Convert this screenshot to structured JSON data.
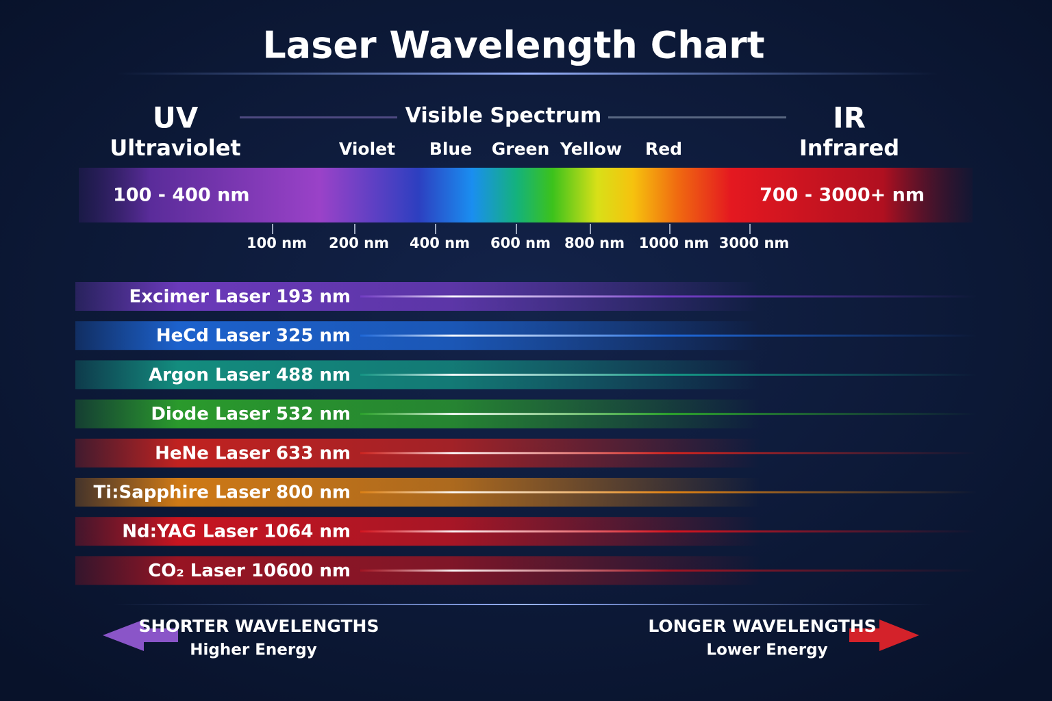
{
  "title": "Laser Wavelength Chart",
  "spectrum": {
    "uv": {
      "short": "UV",
      "name": "Ultraviolet",
      "range": "100 - 400 nm",
      "color": "#b65ad8"
    },
    "visible": {
      "label": "Visible Spectrum",
      "colors": [
        {
          "name": "Violet",
          "color": "#b04fd6"
        },
        {
          "name": "Blue",
          "color": "#3f8cf0"
        },
        {
          "name": "Green",
          "color": "#49d33c"
        },
        {
          "name": "Yellow",
          "color": "#f2d21c"
        },
        {
          "name": "Red",
          "color": "#ee3a22"
        }
      ]
    },
    "ir": {
      "short": "IR",
      "name": "Infrared",
      "range": "700 - 3000+ nm",
      "color": "#e8202e"
    },
    "ticks": [
      "100 nm",
      "200 nm",
      "400 nm",
      "600 nm",
      "800 nm",
      "1000 nm",
      "3000 nm"
    ]
  },
  "lasers": [
    {
      "label": "Excimer Laser 193 nm",
      "color": "#7b3fd0"
    },
    {
      "label": "HeCd Laser 325 nm",
      "color": "#1f6ee6"
    },
    {
      "label": "Argon Laser 488 nm",
      "color": "#14a08a"
    },
    {
      "label": "Diode Laser 532 nm",
      "color": "#2fb02a"
    },
    {
      "label": "HeNe Laser 633 nm",
      "color": "#e0241c"
    },
    {
      "label": "Ti:Sapphire Laser 800 nm",
      "color": "#f08a10"
    },
    {
      "label": "Nd:YAG Laser 1064 nm",
      "color": "#e8141c"
    },
    {
      "label": "CO₂ Laser 10600 nm",
      "color": "#b01420"
    }
  ],
  "footer": {
    "shorter": {
      "title": "SHORTER WAVELENGTHS",
      "subtitle": "Higher Energy",
      "color": "#8a55c8"
    },
    "longer": {
      "title": "LONGER WAVELENGTHS",
      "subtitle": "Lower Energy",
      "color": "#d4222a"
    }
  }
}
